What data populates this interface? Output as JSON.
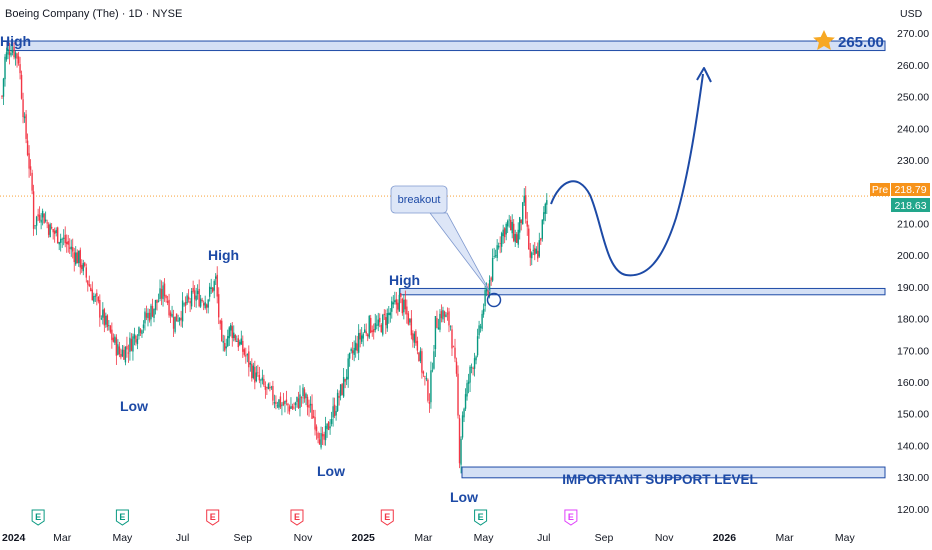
{
  "chart_data": {
    "type": "candlestick",
    "title": "Boeing Company (The) · 1D · NYSE",
    "currency": "USD",
    "y_ticks": [
      120,
      130,
      140,
      150,
      160,
      170,
      180,
      190,
      200,
      210,
      220,
      230,
      240,
      250,
      260,
      270
    ],
    "y_tick_labels": [
      "120.00",
      "130.00",
      "140.00",
      "150.00",
      "160.00",
      "170.00",
      "180.00",
      "190.00",
      "200.00",
      "210.00",
      "220.00",
      "230.00",
      "240.00",
      "250.00",
      "260.00",
      "270.00"
    ],
    "ylim": [
      116.5,
      273.5
    ],
    "x_ticks": [
      {
        "label": "2024",
        "m": 0,
        "bold": true
      },
      {
        "label": "Mar",
        "m": 2,
        "bold": false
      },
      {
        "label": "May",
        "m": 4,
        "bold": false
      },
      {
        "label": "Jul",
        "m": 6,
        "bold": false
      },
      {
        "label": "Sep",
        "m": 8,
        "bold": false
      },
      {
        "label": "Nov",
        "m": 10,
        "bold": false
      },
      {
        "label": "2025",
        "m": 12,
        "bold": true
      },
      {
        "label": "Mar",
        "m": 14,
        "bold": false
      },
      {
        "label": "May",
        "m": 16,
        "bold": false
      },
      {
        "label": "Jul",
        "m": 18,
        "bold": false
      },
      {
        "label": "Sep",
        "m": 20,
        "bold": false
      },
      {
        "label": "Nov",
        "m": 22,
        "bold": false
      },
      {
        "label": "2026",
        "m": 24,
        "bold": true
      },
      {
        "label": "Mar",
        "m": 26,
        "bold": false
      },
      {
        "label": "May",
        "m": 28,
        "bold": false
      }
    ],
    "price_path": [
      [
        0,
        250
      ],
      [
        0.1,
        262
      ],
      [
        0.3,
        266
      ],
      [
        0.55,
        262
      ],
      [
        0.75,
        241
      ],
      [
        0.85,
        233
      ],
      [
        1.0,
        220
      ],
      [
        1.05,
        210
      ],
      [
        1.3,
        214
      ],
      [
        1.6,
        208
      ],
      [
        1.9,
        206
      ],
      [
        2.2,
        203
      ],
      [
        2.6,
        198
      ],
      [
        3.0,
        188
      ],
      [
        3.5,
        177
      ],
      [
        3.9,
        169
      ],
      [
        4.2,
        171
      ],
      [
        4.6,
        178
      ],
      [
        5.0,
        183
      ],
      [
        5.4,
        189
      ],
      [
        5.7,
        179
      ],
      [
        6.0,
        183
      ],
      [
        6.4,
        187
      ],
      [
        6.8,
        186
      ],
      [
        7.1,
        192
      ],
      [
        7.3,
        170
      ],
      [
        7.6,
        177
      ],
      [
        8.0,
        170
      ],
      [
        8.4,
        162
      ],
      [
        8.8,
        157
      ],
      [
        9.3,
        153
      ],
      [
        9.7,
        152
      ],
      [
        10.0,
        156
      ],
      [
        10.4,
        148
      ],
      [
        10.65,
        140
      ],
      [
        10.9,
        148
      ],
      [
        11.3,
        158
      ],
      [
        11.6,
        168
      ],
      [
        11.9,
        174
      ],
      [
        12.2,
        178
      ],
      [
        12.5,
        177
      ],
      [
        12.9,
        182
      ],
      [
        13.2,
        186
      ],
      [
        13.5,
        180
      ],
      [
        13.8,
        172
      ],
      [
        14.0,
        162
      ],
      [
        14.2,
        155
      ],
      [
        14.4,
        178
      ],
      [
        14.6,
        182
      ],
      [
        14.9,
        178
      ],
      [
        15.1,
        160
      ],
      [
        15.2,
        137
      ],
      [
        15.3,
        150
      ],
      [
        15.55,
        163
      ],
      [
        15.8,
        172
      ],
      [
        16.0,
        184
      ],
      [
        16.2,
        192
      ],
      [
        16.5,
        205
      ],
      [
        16.8,
        210
      ],
      [
        17.1,
        205
      ],
      [
        17.35,
        216
      ],
      [
        17.55,
        198
      ],
      [
        17.8,
        201
      ],
      [
        18.0,
        212
      ],
      [
        18.1,
        217
      ]
    ],
    "annotations": {
      "high_1": "High",
      "high_2": "High",
      "high_3": "High",
      "low_1": "Low",
      "low_2": "Low",
      "low_3": "Low",
      "breakout": "breakout",
      "support_label": "IMPORTANT SUPPORT LEVEL",
      "target": "265.00"
    },
    "levels": {
      "top_zone": [
        264.5,
        267.5
      ],
      "breakout_zone": [
        187.5,
        189.5
      ],
      "support_zone": [
        129.8,
        133.2
      ]
    },
    "price_labels": {
      "pre_tag": "Pre",
      "pre_price": "218.79",
      "last_price": "218.63"
    },
    "events": [
      {
        "label": "E",
        "m": 1.2,
        "color": "#089981"
      },
      {
        "label": "E",
        "m": 4.0,
        "color": "#089981"
      },
      {
        "label": "E",
        "m": 7.0,
        "color": "#f23645"
      },
      {
        "label": "E",
        "m": 9.8,
        "color": "#f23645"
      },
      {
        "label": "E",
        "m": 12.8,
        "color": "#f23645"
      },
      {
        "label": "E",
        "m": 15.9,
        "color": "#089981"
      },
      {
        "label": "E",
        "m": 18.9,
        "color": "#e040fb"
      }
    ],
    "colors": {
      "up": "#089981",
      "down": "#f23645",
      "annotation": "#1d4aa6",
      "zone_fill": "#c5d5f2",
      "pre_bg": "#f7931a",
      "last_bg": "#22a68b",
      "star": "#f7a823"
    }
  }
}
